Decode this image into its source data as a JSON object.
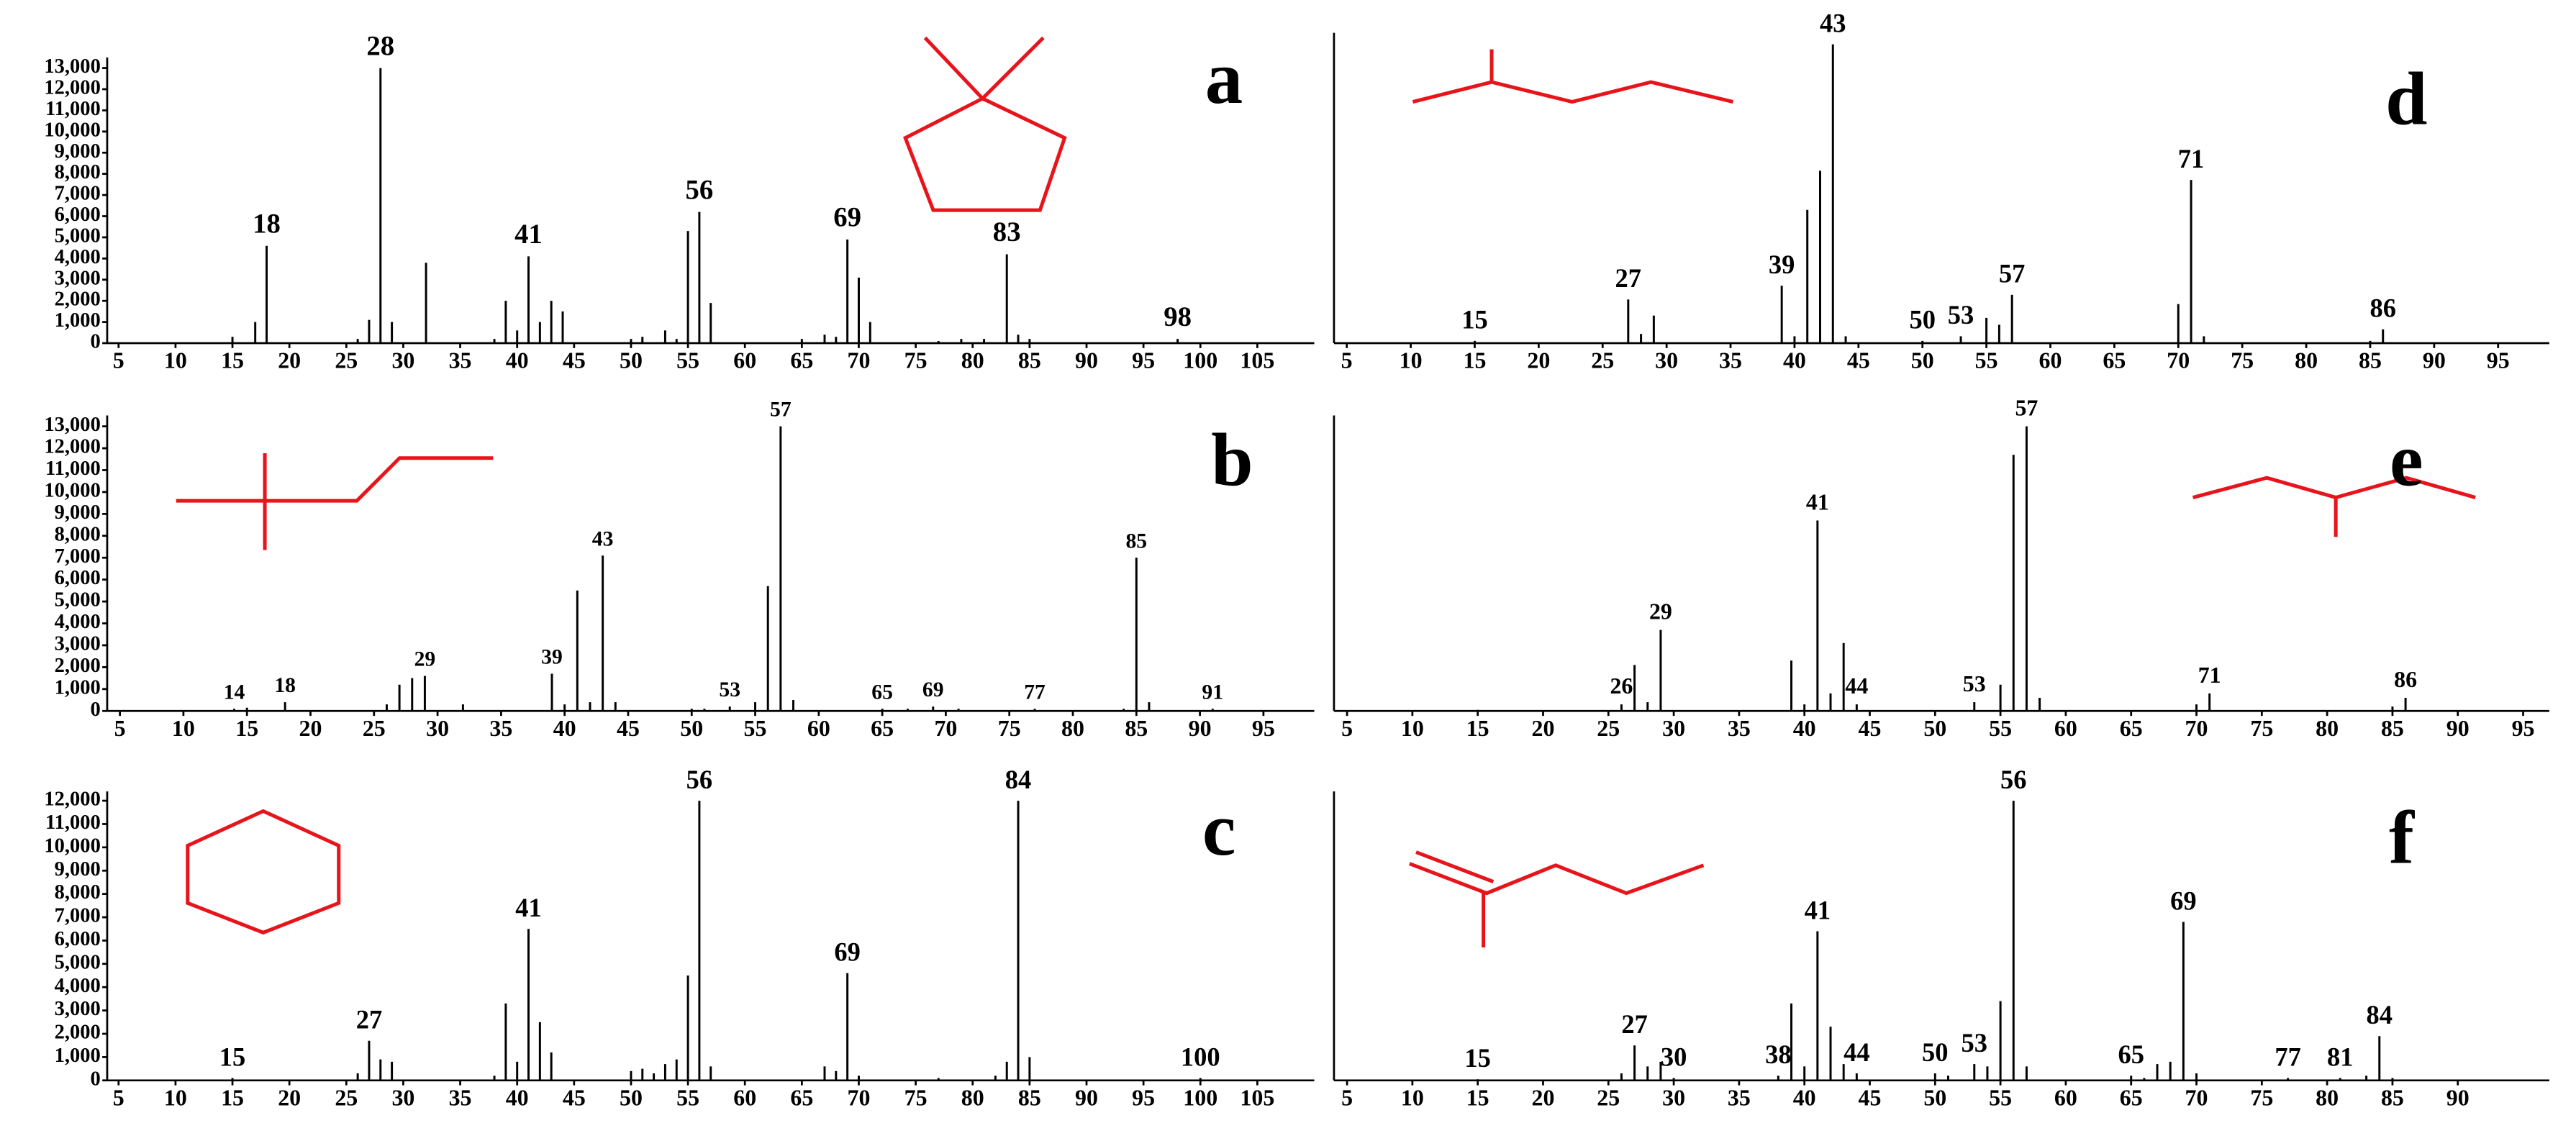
{
  "chart_data": [
    {
      "type": "bar",
      "label": "a",
      "color": "#000000",
      "x": [
        15,
        17,
        18,
        26,
        27,
        28,
        29,
        32,
        38,
        39,
        40,
        41,
        42,
        43,
        44,
        50,
        51,
        53,
        54,
        55,
        56,
        57,
        65,
        67,
        68,
        69,
        70,
        71,
        77,
        79,
        81,
        83,
        84,
        85,
        98
      ],
      "values": [
        300,
        1000,
        4600,
        200,
        1100,
        13000,
        1000,
        3800,
        200,
        2000,
        600,
        4100,
        1000,
        2000,
        1500,
        200,
        300,
        600,
        200,
        5300,
        6200,
        1900,
        200,
        400,
        300,
        4900,
        3100,
        1000,
        100,
        200,
        200,
        4200,
        400,
        200,
        200
      ],
      "peak_labels": [
        18,
        28,
        41,
        56,
        69,
        83,
        98
      ],
      "xlim": [
        4,
        110
      ],
      "ylim": [
        0,
        13500
      ],
      "xticks": [
        5,
        10,
        15,
        20,
        25,
        30,
        35,
        40,
        45,
        50,
        55,
        60,
        65,
        70,
        75,
        80,
        85,
        90,
        95,
        100,
        105
      ],
      "yticks": [
        0,
        {
          "value": 1000,
          "label": "1,000"
        },
        {
          "value": 2000,
          "label": "2,000"
        },
        {
          "value": 3000,
          "label": "3,000"
        },
        {
          "value": 4000,
          "label": "4,000"
        },
        {
          "value": 5000,
          "label": "5,000"
        },
        {
          "value": 6000,
          "label": "6,000"
        },
        {
          "value": 7000,
          "label": "7,000"
        },
        {
          "value": 8000,
          "label": "8,000"
        },
        {
          "value": 9000,
          "label": "9,000"
        },
        {
          "value": 10000,
          "label": "10,000"
        },
        {
          "value": 11000,
          "label": "11,000"
        },
        {
          "value": 12000,
          "label": "12,000"
        },
        {
          "value": 13000,
          "label": "13,000"
        }
      ]
    },
    {
      "type": "bar",
      "label": "b",
      "color": "#000000",
      "x": [
        14,
        15,
        18,
        26,
        27,
        28,
        29,
        32,
        39,
        40,
        41,
        42,
        43,
        44,
        50,
        51,
        53,
        55,
        56,
        57,
        58,
        65,
        67,
        69,
        71,
        77,
        84,
        85,
        86,
        91
      ],
      "values": [
        100,
        150,
        400,
        300,
        1200,
        1500,
        1600,
        300,
        1700,
        300,
        5500,
        400,
        7100,
        400,
        100,
        100,
        200,
        400,
        5700,
        13000,
        500,
        100,
        100,
        200,
        100,
        100,
        100,
        7000,
        400,
        100
      ],
      "peak_labels": [
        14,
        18,
        29,
        39,
        43,
        53,
        57,
        65,
        69,
        77,
        85,
        91
      ],
      "xlim": [
        4,
        99
      ],
      "ylim": [
        0,
        13500
      ],
      "xticks": [
        5,
        10,
        15,
        20,
        25,
        30,
        35,
        40,
        45,
        50,
        55,
        60,
        65,
        70,
        75,
        80,
        85,
        90,
        95
      ],
      "yticks": [
        0,
        {
          "value": 1000,
          "label": "1,000"
        },
        {
          "value": 2000,
          "label": "2,000"
        },
        {
          "value": 3000,
          "label": "3,000"
        },
        {
          "value": 4000,
          "label": "4,000"
        },
        {
          "value": 5000,
          "label": "5,000"
        },
        {
          "value": 6000,
          "label": "6,000"
        },
        {
          "value": 7000,
          "label": "7,000"
        },
        {
          "value": 8000,
          "label": "8,000"
        },
        {
          "value": 9000,
          "label": "9,000"
        },
        {
          "value": 10000,
          "label": "10,000"
        },
        {
          "value": 11000,
          "label": "11,000"
        },
        {
          "value": 12000,
          "label": "12,000"
        },
        {
          "value": 13000,
          "label": "13,000"
        }
      ]
    },
    {
      "type": "bar",
      "label": "c",
      "color": "#000000",
      "x": [
        15,
        26,
        27,
        28,
        29,
        38,
        39,
        40,
        41,
        42,
        43,
        50,
        51,
        52,
        53,
        54,
        55,
        56,
        57,
        67,
        68,
        69,
        70,
        77,
        82,
        83,
        84,
        85,
        100
      ],
      "values": [
        100,
        300,
        1700,
        900,
        800,
        200,
        3300,
        800,
        6500,
        2500,
        1200,
        400,
        500,
        300,
        700,
        900,
        4500,
        12000,
        600,
        600,
        400,
        4600,
        200,
        100,
        200,
        800,
        12000,
        1000,
        100
      ],
      "peak_labels": [
        15,
        27,
        41,
        56,
        69,
        84,
        100
      ],
      "xlim": [
        4,
        110
      ],
      "ylim": [
        0,
        12400
      ],
      "xticks": [
        5,
        10,
        15,
        20,
        25,
        30,
        35,
        40,
        45,
        50,
        55,
        60,
        65,
        70,
        75,
        80,
        85,
        90,
        95,
        100,
        105
      ],
      "yticks": [
        0,
        {
          "value": 1000,
          "label": "1,000"
        },
        {
          "value": 2000,
          "label": "2,000"
        },
        {
          "value": 3000,
          "label": "3,000"
        },
        {
          "value": 4000,
          "label": "4,000"
        },
        {
          "value": 5000,
          "label": "5,000"
        },
        {
          "value": 6000,
          "label": "6,000"
        },
        {
          "value": 7000,
          "label": "7,000"
        },
        {
          "value": 8000,
          "label": "8,000"
        },
        {
          "value": 9000,
          "label": "9,000"
        },
        {
          "value": 10000,
          "label": "10,000"
        },
        {
          "value": 11000,
          "label": "11,000"
        },
        {
          "value": 12000,
          "label": "12,000"
        }
      ]
    },
    {
      "type": "bar",
      "label": "d",
      "color": "#000000",
      "x": [
        15,
        27,
        28,
        29,
        39,
        40,
        41,
        42,
        43,
        44,
        50,
        53,
        55,
        56,
        57,
        70,
        71,
        72,
        85,
        86
      ],
      "values": [
        100,
        1900,
        400,
        1200,
        2500,
        300,
        5800,
        7500,
        13000,
        300,
        100,
        300,
        1100,
        800,
        2100,
        1700,
        7100,
        300,
        100,
        600
      ],
      "peak_labels": [
        15,
        27,
        39,
        43,
        50,
        53,
        57,
        71,
        86
      ],
      "xlim": [
        4,
        99
      ],
      "ylim": [
        0,
        13500
      ],
      "xticks": [
        5,
        10,
        15,
        20,
        25,
        30,
        35,
        40,
        45,
        50,
        55,
        60,
        65,
        70,
        75,
        80,
        85,
        90,
        95
      ]
    },
    {
      "type": "bar",
      "label": "e",
      "color": "#000000",
      "x": [
        15,
        26,
        27,
        28,
        29,
        39,
        40,
        41,
        42,
        43,
        44,
        53,
        55,
        56,
        57,
        58,
        70,
        71,
        85,
        86
      ],
      "values": [
        50,
        300,
        2100,
        400,
        3700,
        2300,
        300,
        8700,
        800,
        3100,
        300,
        400,
        1200,
        11700,
        13000,
        600,
        300,
        800,
        200,
        600
      ],
      "peak_labels": [
        26,
        29,
        41,
        44,
        53,
        57,
        71,
        86
      ],
      "xlim": [
        4,
        97
      ],
      "ylim": [
        0,
        13500
      ],
      "xticks": [
        5,
        10,
        15,
        20,
        25,
        30,
        35,
        40,
        45,
        50,
        55,
        60,
        65,
        70,
        75,
        80,
        85,
        90,
        95
      ]
    },
    {
      "type": "bar",
      "label": "f",
      "color": "#000000",
      "x": [
        15,
        26,
        27,
        28,
        29,
        30,
        38,
        39,
        40,
        41,
        42,
        43,
        44,
        50,
        51,
        53,
        54,
        55,
        56,
        57,
        65,
        66,
        67,
        68,
        69,
        70,
        77,
        81,
        83,
        84,
        85
      ],
      "values": [
        50,
        300,
        1500,
        600,
        800,
        100,
        200,
        3300,
        600,
        6400,
        2300,
        700,
        300,
        300,
        200,
        700,
        600,
        3400,
        12000,
        600,
        200,
        100,
        700,
        800,
        6800,
        300,
        100,
        100,
        200,
        1900,
        100
      ],
      "peak_labels": [
        15,
        27,
        30,
        38,
        41,
        44,
        50,
        53,
        56,
        65,
        69,
        77,
        81,
        84
      ],
      "xlim": [
        4,
        97
      ],
      "ylim": [
        0,
        12400
      ],
      "xticks": [
        5,
        10,
        15,
        20,
        25,
        30,
        35,
        40,
        45,
        50,
        55,
        60,
        65,
        70,
        75,
        80,
        85,
        90
      ]
    }
  ]
}
